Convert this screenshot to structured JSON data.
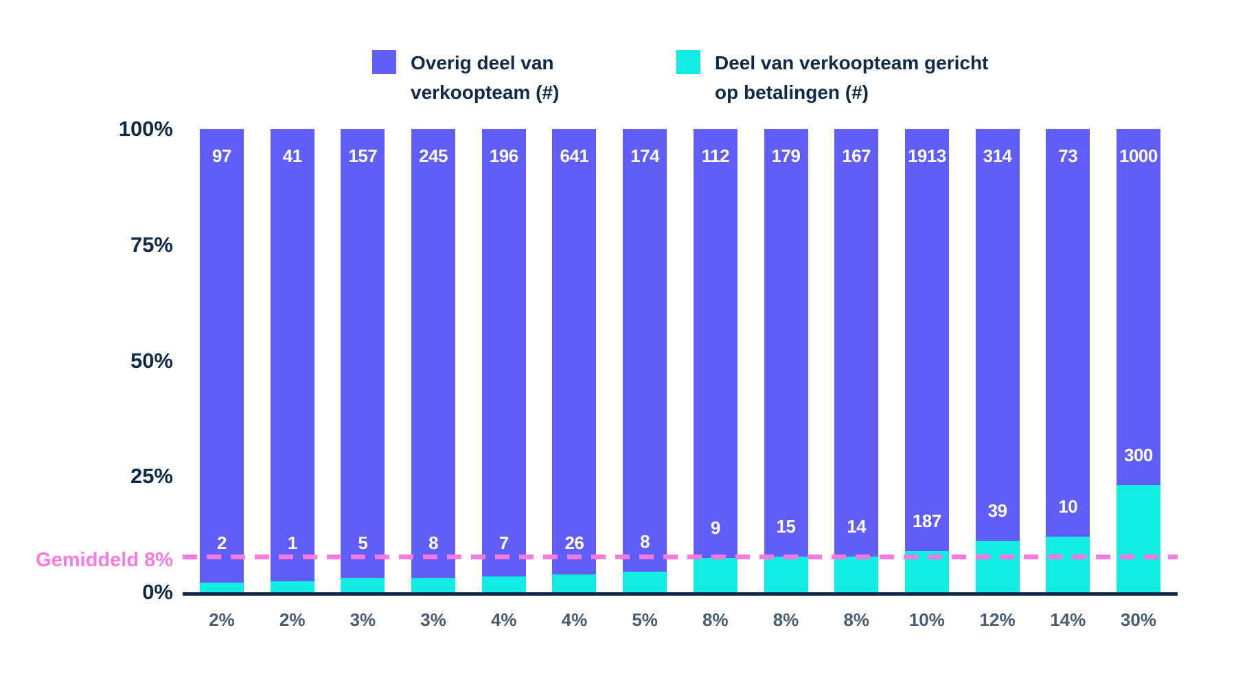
{
  "legend": {
    "items": [
      {
        "name": "Overig deel van verkoopteam (#)",
        "color": "#615DF8",
        "lines": [
          "Overig deel van",
          "verkoopteam (#)"
        ]
      },
      {
        "name": "Deel van verkoopteam gericht op betalingen (#)",
        "color": "#11EDE2",
        "lines": [
          "Deel van verkoopteam gericht",
          "op betalingen  (#)"
        ]
      }
    ]
  },
  "chart_data": {
    "type": "bar",
    "variant": "stacked-100-percent",
    "title": "",
    "xlabel": "",
    "ylabel": "",
    "categories": [
      "2%",
      "2%",
      "3%",
      "3%",
      "4%",
      "4%",
      "5%",
      "8%",
      "8%",
      "8%",
      "10%",
      "12%",
      "14%",
      "30%"
    ],
    "series": [
      {
        "name": "Overig deel van verkoopteam (#)",
        "color": "#615DF8",
        "values": [
          97,
          41,
          157,
          245,
          196,
          641,
          174,
          112,
          179,
          167,
          1913,
          314,
          73,
          1000
        ]
      },
      {
        "name": "Deel van verkoopteam gericht op betalingen (#)",
        "color": "#11EDE2",
        "values": [
          2,
          1,
          5,
          8,
          7,
          26,
          8,
          9,
          15,
          14,
          187,
          39,
          10,
          300
        ]
      }
    ],
    "yticks": [
      "100%",
      "75%",
      "50%",
      "25%",
      "0%"
    ],
    "ylim": [
      0,
      100
    ],
    "grid": false,
    "legend_position": "top",
    "average_line": {
      "label": "Gemiddeld 8%",
      "value": 8,
      "color": "#F97BE0",
      "style": "dashed"
    },
    "colors": {
      "axis": "#0F2A46",
      "ytick_text": "#0F2A46",
      "xtick_text": "#4A5C71",
      "bar_value_text": "#ffffff",
      "background": "#ffffff"
    }
  }
}
